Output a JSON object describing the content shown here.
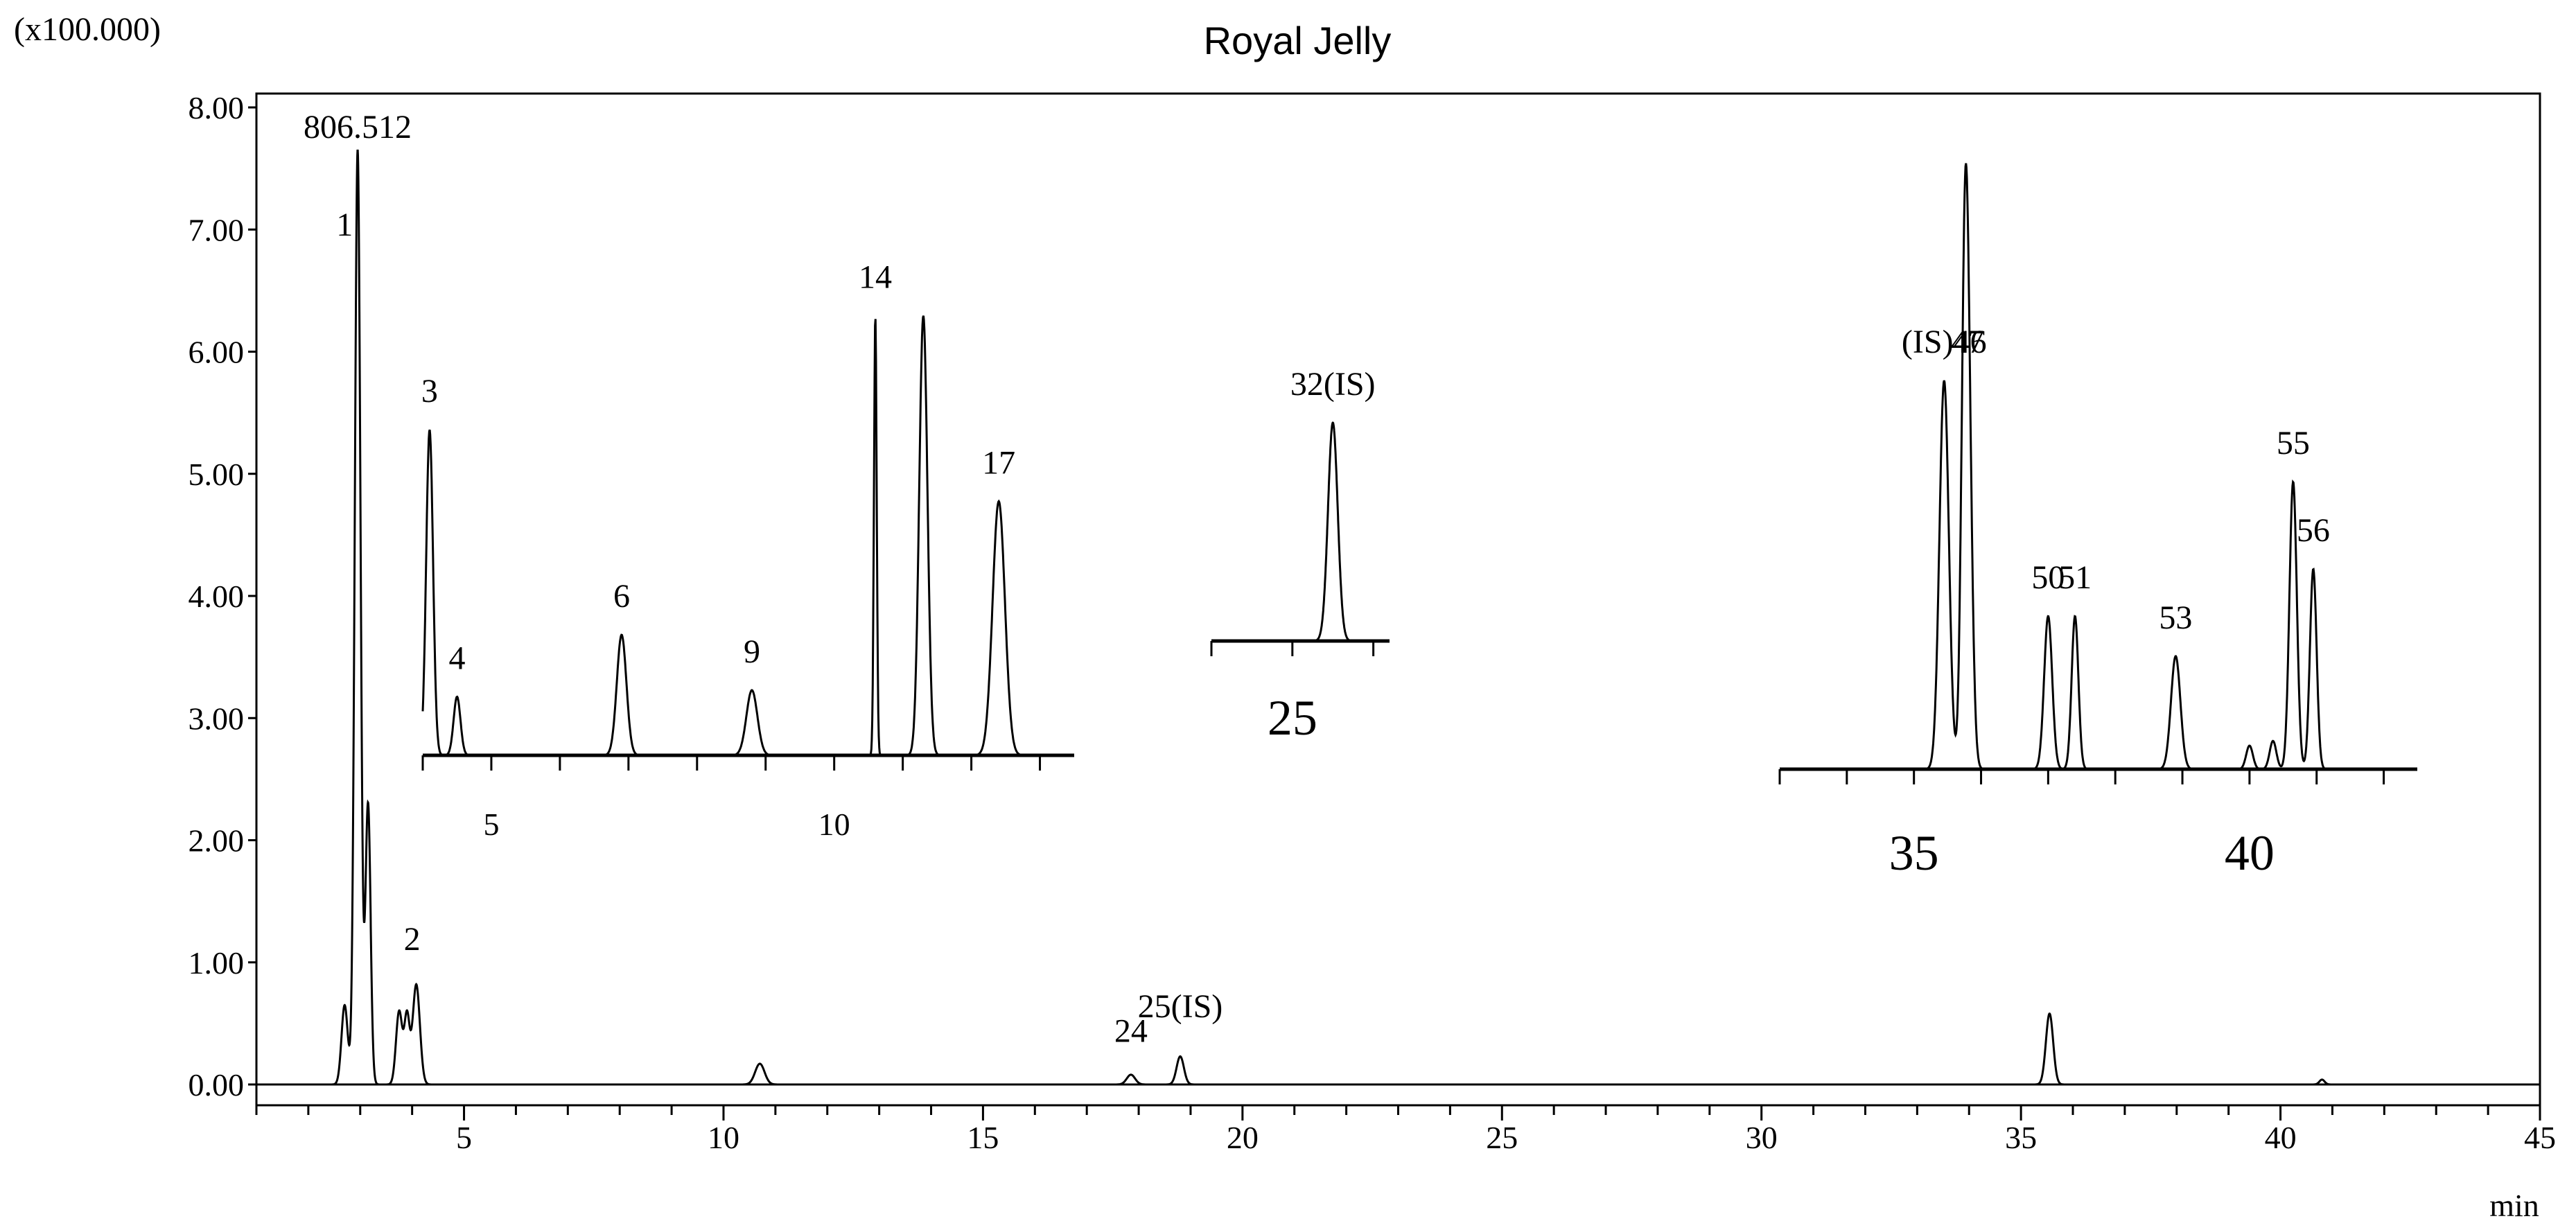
{
  "title": "Royal Jelly",
  "chart_data": {
    "type": "line",
    "title": "Royal Jelly",
    "y_multiplier_label": "(x100.000)",
    "xlabel": "min",
    "x_range": [
      1.0,
      45.0
    ],
    "y_range": [
      0.0,
      8.0
    ],
    "x_ticks": [
      5,
      10,
      15,
      20,
      25,
      30,
      35,
      40,
      45
    ],
    "y_ticks": [
      "0.00",
      "1.00",
      "2.00",
      "3.00",
      "4.00",
      "5.00",
      "6.00",
      "7.00",
      "8.00"
    ],
    "grid": false,
    "main_trace": {
      "peaks": [
        {
          "rt": 2.7,
          "height": 0.65,
          "width": 0.06
        },
        {
          "rt": 2.95,
          "height": 7.65,
          "width": 0.055
        },
        {
          "rt": 3.15,
          "height": 2.3,
          "width": 0.05
        },
        {
          "rt": 3.75,
          "height": 0.6,
          "width": 0.06
        },
        {
          "rt": 3.9,
          "height": 0.55,
          "width": 0.05
        },
        {
          "rt": 4.08,
          "height": 0.82,
          "width": 0.07
        },
        {
          "rt": 10.7,
          "height": 0.17,
          "width": 0.09
        },
        {
          "rt": 17.85,
          "height": 0.08,
          "width": 0.08
        },
        {
          "rt": 18.8,
          "height": 0.23,
          "width": 0.07
        },
        {
          "rt": 35.55,
          "height": 0.58,
          "width": 0.07
        },
        {
          "rt": 40.8,
          "height": 0.04,
          "width": 0.05
        }
      ],
      "peak_labels": [
        {
          "text": "806.512",
          "rt": 2.95,
          "y": 7.75
        },
        {
          "text": "1",
          "rt": 2.7,
          "y": 6.95
        },
        {
          "text": "2",
          "rt": 4.0,
          "y": 1.1
        },
        {
          "text": "24",
          "rt": 17.85,
          "y": 0.35
        },
        {
          "text": "25(IS)",
          "rt": 18.8,
          "y": 0.55
        }
      ]
    },
    "insets": [
      {
        "x_ticks": [
          {
            "value": 5,
            "label": "5"
          },
          {
            "value": 10,
            "label": "10"
          }
        ],
        "x_range": [
          4.0,
          13.5
        ],
        "peaks": [
          {
            "rt": 4.1,
            "height": 1.0,
            "width": 0.05,
            "label": "3"
          },
          {
            "rt": 4.5,
            "height": 0.18,
            "width": 0.05,
            "label": "4"
          },
          {
            "rt": 6.9,
            "height": 0.37,
            "width": 0.07,
            "label": "6"
          },
          {
            "rt": 8.8,
            "height": 0.2,
            "width": 0.08,
            "label": "9"
          },
          {
            "rt": 10.6,
            "height": 1.35,
            "width": 0.02,
            "label": "14"
          },
          {
            "rt": 11.3,
            "height": 1.35,
            "width": 0.06,
            "label": ""
          },
          {
            "rt": 12.4,
            "height": 0.78,
            "width": 0.09,
            "label": "17"
          }
        ]
      },
      {
        "x_ticks": [
          {
            "value": 25,
            "label": "25"
          }
        ],
        "x_range": [
          24.0,
          26.2
        ],
        "peaks": [
          {
            "rt": 25.5,
            "height": 1.05,
            "width": 0.06,
            "label": "32(IS)"
          }
        ]
      },
      {
        "x_ticks": [
          {
            "value": 35,
            "label": "35"
          },
          {
            "value": 40,
            "label": "40"
          }
        ],
        "x_range": [
          33.0,
          42.5
        ],
        "peaks": [
          {
            "rt": 35.45,
            "height": 1.65,
            "width": 0.07,
            "label": "(IS)46"
          },
          {
            "rt": 35.8,
            "height": 1.65,
            "width": 0.06,
            "label": "47"
          },
          {
            "rt": 35.75,
            "height": 1.2,
            "width": 0.05,
            "label": ""
          },
          {
            "rt": 37.0,
            "height": 0.65,
            "width": 0.06,
            "label": "50"
          },
          {
            "rt": 37.4,
            "height": 0.65,
            "width": 0.05,
            "label": "51"
          },
          {
            "rt": 38.9,
            "height": 0.48,
            "width": 0.07,
            "label": "53"
          },
          {
            "rt": 40.0,
            "height": 0.1,
            "width": 0.05,
            "label": ""
          },
          {
            "rt": 40.35,
            "height": 0.12,
            "width": 0.05,
            "label": ""
          },
          {
            "rt": 40.65,
            "height": 1.22,
            "width": 0.055,
            "label": "55"
          },
          {
            "rt": 40.95,
            "height": 0.85,
            "width": 0.05,
            "label": "56"
          }
        ]
      }
    ]
  },
  "colors": {
    "trace": "#000000",
    "axis": "#000000",
    "background": "#ffffff"
  }
}
